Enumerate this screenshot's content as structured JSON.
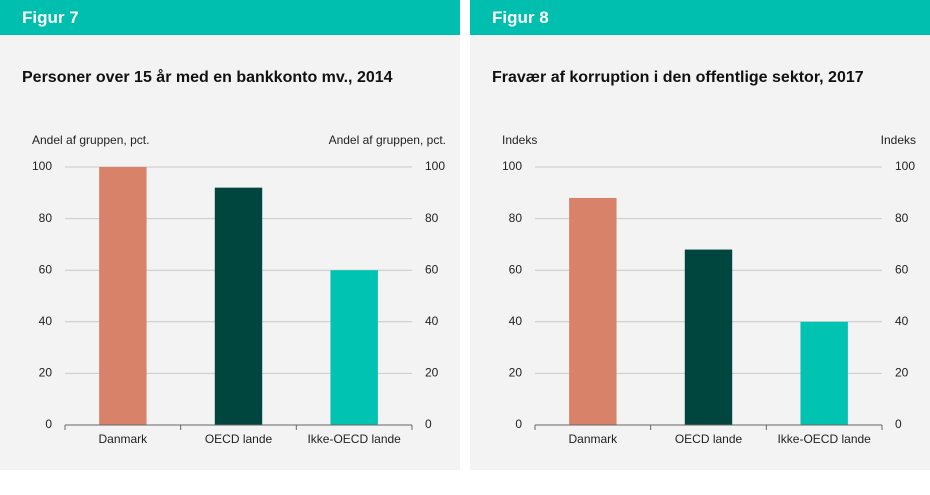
{
  "chart_data": [
    {
      "type": "bar",
      "figure_label": "Figur 7",
      "title": "Personer over 15 år med en bankkonto mv., 2014",
      "ylabel_left": "Andel af gruppen, pct.",
      "ylabel_right": "Andel af gruppen, pct.",
      "categories": [
        "Danmark",
        "OECD lande",
        "Ikke-OECD lande"
      ],
      "values": [
        100,
        92,
        60
      ],
      "colors": [
        "#d9826a",
        "#00463f",
        "#00c3b1"
      ],
      "ylim": [
        0,
        100
      ],
      "yticks": [
        0,
        20,
        40,
        60,
        80,
        100
      ],
      "grid": true
    },
    {
      "type": "bar",
      "figure_label": "Figur 8",
      "title": "Fravær af korruption i den offentlige sektor, 2017",
      "ylabel_left": "Indeks",
      "ylabel_right": "Indeks",
      "categories": [
        "Danmark",
        "OECD lande",
        "Ikke-OECD lande"
      ],
      "values": [
        88,
        68,
        40
      ],
      "colors": [
        "#d9826a",
        "#00463f",
        "#00c3b1"
      ],
      "ylim": [
        0,
        100
      ],
      "yticks": [
        0,
        20,
        40,
        60,
        80,
        100
      ],
      "grid": true
    }
  ]
}
